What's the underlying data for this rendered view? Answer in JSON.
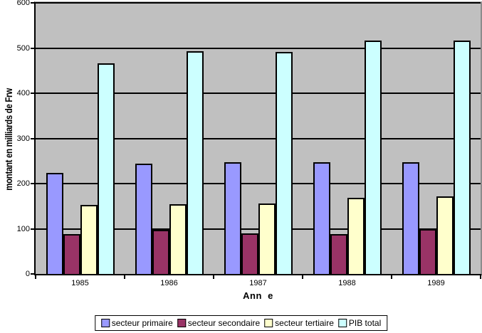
{
  "chart_data": {
    "type": "bar",
    "categories": [
      "1985",
      "1986",
      "1987",
      "1988",
      "1989"
    ],
    "series": [
      {
        "name": "secteur primaire",
        "color": "#9999FF",
        "values": [
          224,
          244,
          247,
          247,
          247
        ]
      },
      {
        "name": "secteur secondaire",
        "color": "#993366",
        "values": [
          89,
          98,
          90,
          88,
          99
        ]
      },
      {
        "name": "secteur tertiaire",
        "color": "#FFFFCC",
        "values": [
          152,
          155,
          156,
          168,
          171
        ]
      },
      {
        "name": "PIB total",
        "color": "#CCFFFF",
        "values": [
          466,
          493,
          492,
          516,
          517
        ]
      }
    ],
    "title": "",
    "xlabel": "Ann  e",
    "ylabel": "montant en milliards de Frw",
    "ylim": [
      0,
      600
    ],
    "ytick_interval": 100,
    "y_ticks": [
      "0",
      "100",
      "200",
      "300",
      "400",
      "500",
      "600"
    ],
    "grid": true,
    "legend_position": "bottom",
    "colors": {
      "plot_bg": "#C0C0C0",
      "gridline": "#000000",
      "bar_border": "#000000",
      "plot_top_border": "#A6A6A6",
      "plot_right_border": "#8C8C8C",
      "legend_bg": "#FFFFFF",
      "page_bg": "#FFFFFF",
      "text": "#000000"
    }
  }
}
